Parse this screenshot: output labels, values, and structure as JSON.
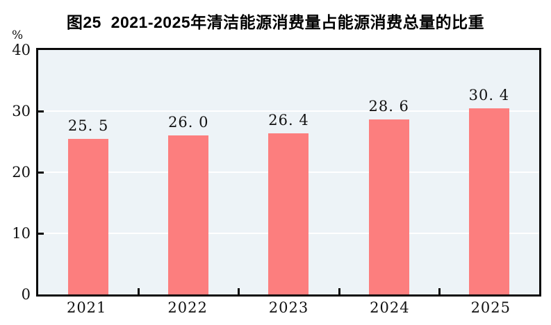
{
  "figure": {
    "title": "图25  2021-2025年清洁能源消费量占能源消费总量的比重",
    "unit_label": "%"
  },
  "chart_data": {
    "type": "bar",
    "title": "图25  2021-2025年清洁能源消费量占能源消费总量的比重",
    "categories": [
      "2021",
      "2022",
      "2023",
      "2024",
      "2025"
    ],
    "values": [
      25.5,
      26.0,
      26.4,
      28.6,
      30.4
    ],
    "value_labels": [
      "25. 5",
      "26. 0",
      "26. 4",
      "28. 6",
      "30. 4"
    ],
    "xlabel": "",
    "ylabel": "%",
    "ylim": [
      0,
      40
    ],
    "yticks": [
      0,
      10,
      20,
      30,
      40
    ],
    "ytick_labels": [
      "0",
      "10",
      "20",
      "30",
      "40"
    ],
    "gridline_values": [
      10,
      20,
      30
    ],
    "grid": "horizontal",
    "legend": "none",
    "colors": {
      "bar": "#FC7E7E",
      "plot_background": "#EDF3F7",
      "gridline": "#FFFFFF",
      "axis_frame": "#0A0A0A",
      "text": "#111111"
    }
  }
}
